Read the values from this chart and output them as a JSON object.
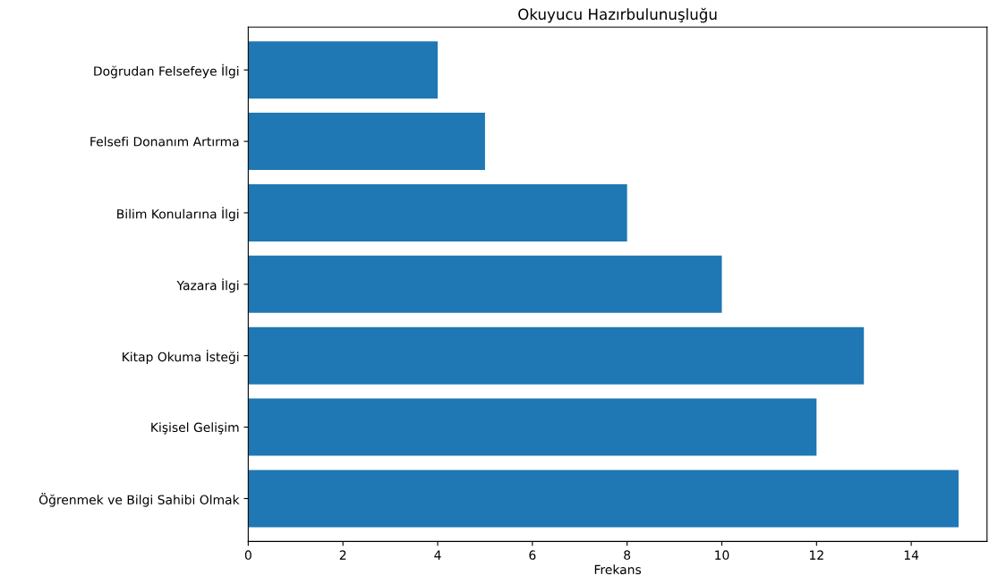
{
  "chart_data": {
    "type": "bar",
    "orientation": "horizontal",
    "title": "Okuyucu Hazırbulunuşluğu",
    "xlabel": "Frekans",
    "categories": [
      "Doğrudan Felsefeye İlgi",
      "Felsefi Donanım Artırma",
      "Bilim Konularına İlgi",
      "Yazara İlgi",
      "Kitap Okuma İsteği",
      "Kişisel Gelişim",
      "Öğrenmek ve Bilgi Sahibi Olmak"
    ],
    "values": [
      4,
      5,
      8,
      10,
      13,
      12,
      15
    ],
    "color": "#1f77b4",
    "xlim": [
      0,
      15.6
    ],
    "xticks": [
      0,
      2,
      4,
      6,
      8,
      10,
      12,
      14
    ],
    "grid": false,
    "legend": false
  }
}
